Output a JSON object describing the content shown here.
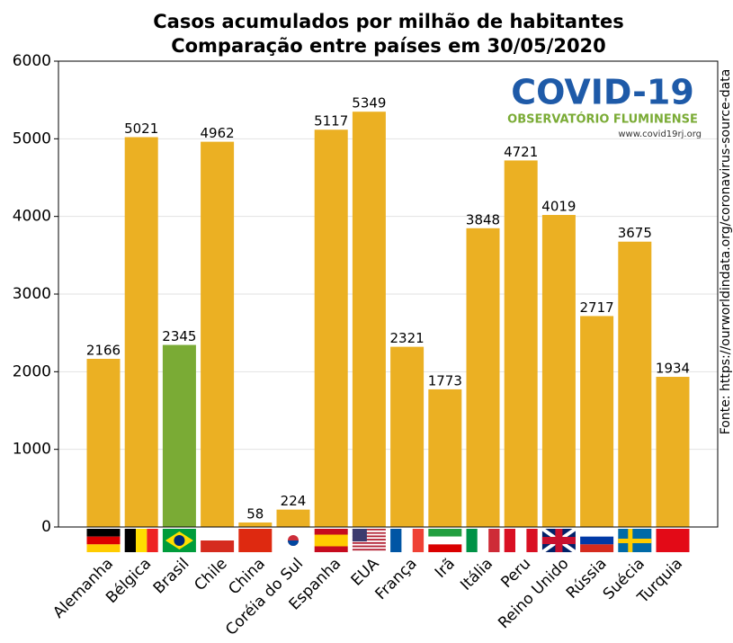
{
  "chart_data": {
    "type": "bar",
    "title": "Casos acumulados por milhão de habitantes",
    "subtitle": "Comparação entre países em 30/05/2020",
    "categories": [
      "Alemanha",
      "Bélgica",
      "Brasil",
      "Chile",
      "China",
      "Coréia do Sul",
      "Espanha",
      "EUA",
      "França",
      "Irã",
      "Itália",
      "Peru",
      "Reino Unido",
      "Rússia",
      "Suécia",
      "Turquia"
    ],
    "values": [
      2166,
      5021,
      2345,
      4962,
      58,
      224,
      5117,
      5349,
      2321,
      1773,
      3848,
      4721,
      4019,
      2717,
      3675,
      1934
    ],
    "colors": [
      "#ebb023",
      "#ebb023",
      "#7aab35",
      "#ebb023",
      "#ebb023",
      "#ebb023",
      "#ebb023",
      "#ebb023",
      "#ebb023",
      "#ebb023",
      "#ebb023",
      "#ebb023",
      "#ebb023",
      "#ebb023",
      "#ebb023",
      "#ebb023"
    ],
    "ylim": [
      0,
      6000
    ],
    "yticks": [
      0,
      1000,
      2000,
      3000,
      4000,
      5000,
      6000
    ],
    "grid": true,
    "source": "Fonte: https://ourworldindata.org/coronavirus-source-data",
    "logo": {
      "title": "COVID-19",
      "subtitle": "OBSERVATÓRIO FLUMINENSE",
      "url": "www.covid19rj.org"
    }
  }
}
